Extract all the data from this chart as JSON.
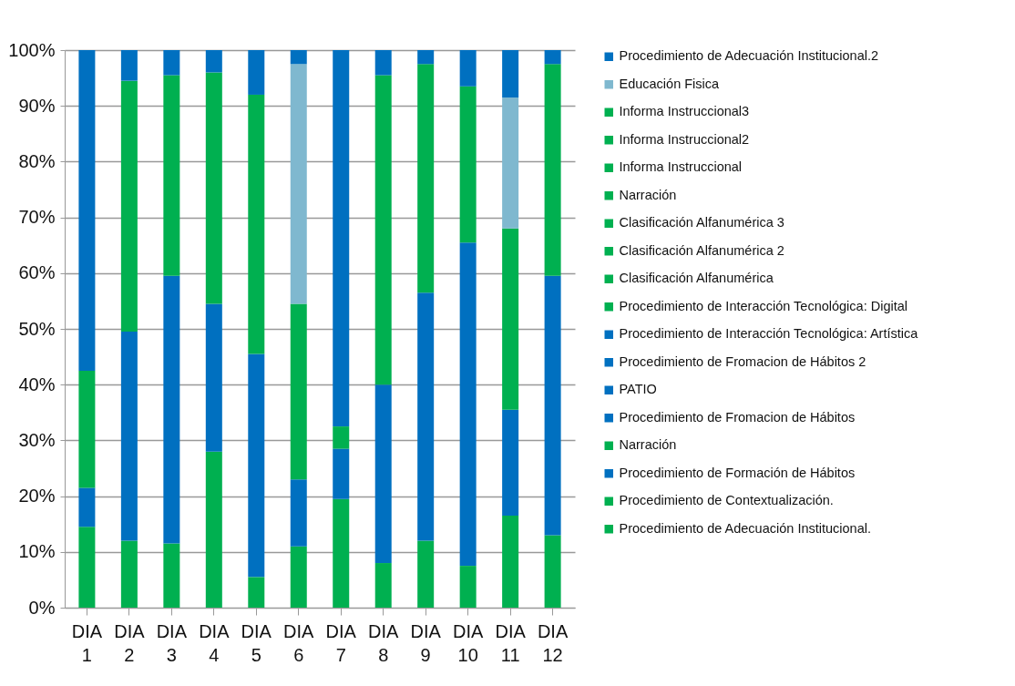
{
  "chart_data": {
    "type": "bar",
    "stacked": true,
    "grid": "y",
    "legend": "right",
    "categories": [
      "DIA 1",
      "DIA 2",
      "DIA 3",
      "DIA 4",
      "DIA 5",
      "DIA 6",
      "DIA 7",
      "DIA 8",
      "DIA 9",
      "DIA 10",
      "DIA 11",
      "DIA 12"
    ],
    "ylim": [
      0,
      100
    ],
    "yticks": [
      {
        "value": 0,
        "label": "0%"
      },
      {
        "value": 10,
        "label": "10%"
      },
      {
        "value": 20,
        "label": "20%"
      },
      {
        "value": 30,
        "label": "30%"
      },
      {
        "value": 40,
        "label": "40%"
      },
      {
        "value": 50,
        "label": "50%"
      },
      {
        "value": 60,
        "label": "60%"
      },
      {
        "value": 70,
        "label": "70%"
      },
      {
        "value": 80,
        "label": "80%"
      },
      {
        "value": 90,
        "label": "90%"
      },
      {
        "value": 100,
        "label": "100%"
      }
    ],
    "series": [
      {
        "name": "Procedimiento de Adecuación Institucional.",
        "color": "#00b050",
        "values": [
          14.5,
          12,
          11.5,
          28,
          5.5,
          11,
          19.5,
          8,
          12,
          7.5,
          16.5,
          13
        ]
      },
      {
        "name": "Procedimiento de Contextualización.",
        "color": "#00b050",
        "values": [
          null,
          null,
          null,
          null,
          null,
          null,
          null,
          null,
          null,
          null,
          null,
          null
        ]
      },
      {
        "name": "Procedimiento de Formación de Hábitos",
        "color": "#0070c0",
        "values": [
          7,
          37.5,
          null,
          null,
          null,
          null,
          9,
          null,
          null,
          null,
          null,
          null
        ]
      },
      {
        "name": "Narración",
        "color": "#00b050",
        "values": [
          21,
          null,
          null,
          null,
          null,
          null,
          4,
          null,
          null,
          null,
          null,
          null
        ]
      },
      {
        "name": "Procedimiento de Fromacion de Hábitos",
        "color": "#0070c0",
        "values": [
          null,
          null,
          48,
          26.5,
          40,
          12,
          null,
          32,
          44.5,
          null,
          19,
          null
        ]
      },
      {
        "name": "PATIO",
        "color": "#0070c0",
        "values": [
          57.5,
          null,
          null,
          null,
          null,
          null,
          null,
          null,
          null,
          null,
          null,
          null
        ]
      },
      {
        "name": "Procedimiento de Fromacion de Hábitos 2",
        "color": "#0070c0",
        "values": [
          null,
          null,
          null,
          null,
          null,
          null,
          67.5,
          null,
          null,
          null,
          null,
          null
        ]
      },
      {
        "name": "Procedimiento de Interacción Tecnológica: Artística",
        "color": "#0070c0",
        "values": [
          null,
          null,
          null,
          null,
          null,
          null,
          null,
          null,
          null,
          58,
          null,
          46.5
        ]
      },
      {
        "name": "Procedimiento de Interacción Tecnológica: Digital",
        "color": "#00b050",
        "values": [
          null,
          45,
          null,
          null,
          null,
          null,
          null,
          null,
          null,
          null,
          null,
          null
        ]
      },
      {
        "name": "Clasificación Alfanumérica",
        "color": "#00b050",
        "values": [
          null,
          null,
          36,
          null,
          null,
          null,
          null,
          null,
          null,
          null,
          null,
          null
        ]
      },
      {
        "name": "Clasificación Alfanumérica 2",
        "color": "#00b050",
        "values": [
          null,
          null,
          null,
          41.5,
          null,
          null,
          null,
          null,
          null,
          null,
          null,
          null
        ]
      },
      {
        "name": "Clasificación Alfanumérica 3",
        "color": "#00b050",
        "values": [
          null,
          null,
          null,
          null,
          46.5,
          null,
          null,
          null,
          null,
          null,
          null,
          null
        ]
      },
      {
        "name": "Narración",
        "color": "#00b050",
        "values": [
          null,
          null,
          null,
          null,
          null,
          31.5,
          null,
          null,
          null,
          null,
          null,
          null
        ]
      },
      {
        "name": "Informa Instruccional",
        "color": "#00b050",
        "values": [
          null,
          null,
          null,
          null,
          null,
          null,
          null,
          55.5,
          null,
          null,
          32.5,
          null
        ]
      },
      {
        "name": "Informa Instruccional2",
        "color": "#00b050",
        "values": [
          null,
          null,
          null,
          null,
          null,
          null,
          null,
          null,
          41,
          null,
          null,
          null
        ]
      },
      {
        "name": "Informa Instruccional3",
        "color": "#00b050",
        "values": [
          null,
          null,
          null,
          null,
          null,
          null,
          null,
          null,
          null,
          28,
          null,
          38
        ]
      },
      {
        "name": "Educación Fisica",
        "color": "#7fb8cf",
        "values": [
          null,
          null,
          null,
          null,
          null,
          43,
          null,
          null,
          null,
          null,
          23.5,
          null
        ]
      },
      {
        "name": "Procedimiento de Adecuación Institucional.2",
        "color": "#0070c0",
        "values": [
          null,
          5.5,
          4.5,
          4,
          8,
          2.5,
          null,
          4.5,
          2.5,
          6.5,
          8.5,
          2.5
        ]
      }
    ]
  }
}
